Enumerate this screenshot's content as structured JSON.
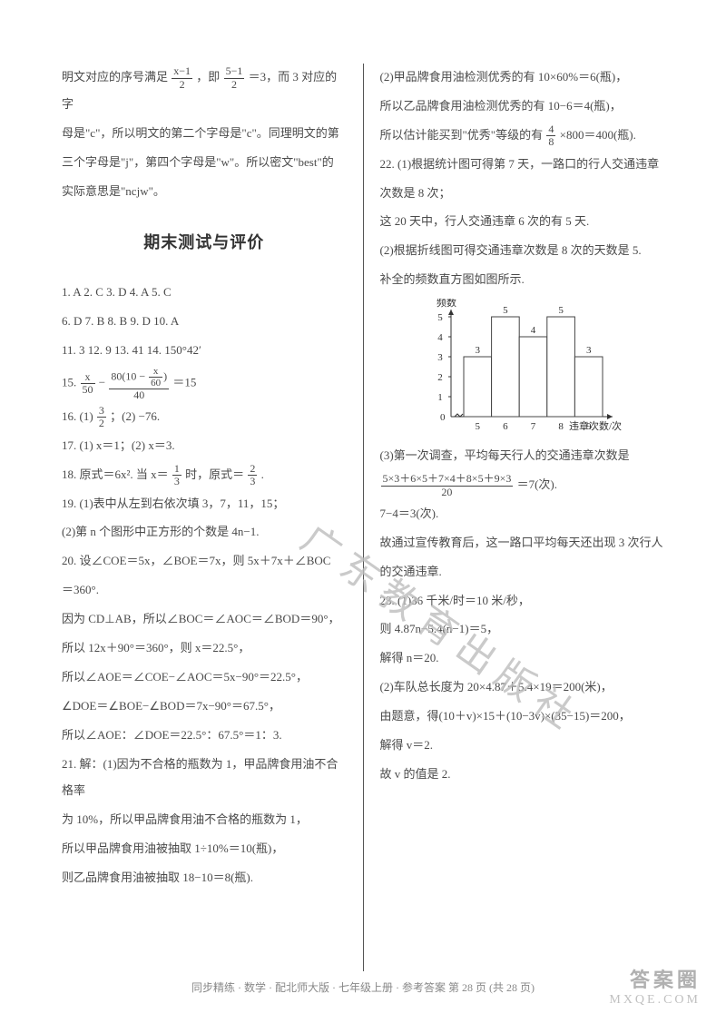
{
  "left": {
    "p1": "明文对应的序号满足",
    "p1b": "，即",
    "p1c": "＝3，而 3 对应的字",
    "f1": {
      "num": "x−1",
      "den": "2"
    },
    "f1b": {
      "num": "5−1",
      "den": "2"
    },
    "p2": "母是\"c\"，所以明文的第二个字母是\"c\"。同理明文的第",
    "p3": "三个字母是\"j\"，第四个字母是\"w\"。所以密文\"best\"的",
    "p4": "实际意思是\"ncjw\"。",
    "heading": "期末测试与评价",
    "q1_5": "1. A   2. C   3. D   4. A   5. C",
    "q6_10": "6. D   7. B   8. B   9. D   10. A",
    "q11_14": "11. 3   12. 9   13. 41   14. 150°42′",
    "q15a": "15. ",
    "q15_f1": {
      "num": "x",
      "den": "50"
    },
    "q15_dash": " − ",
    "q15_f2num_a": "80(10 − ",
    "q15_f2num_f": {
      "num": "x",
      "den": "60"
    },
    "q15_f2num_b": ")",
    "q15_f2den": "40",
    "q15_eq": " ＝15",
    "q16": "16. (1) ",
    "q16f": {
      "num": "3",
      "den": "2"
    },
    "q16b": "；(2) −76.",
    "q17": "17. (1) x＝1；(2) x＝3.",
    "q18a": "18. 原式＝6x². 当 x＝",
    "q18f1": {
      "num": "1",
      "den": "3"
    },
    "q18b": " 时，原式＝",
    "q18f2": {
      "num": "2",
      "den": "3"
    },
    "q18c": ".",
    "q19_1": "19. (1)表中从左到右依次填 3，7，11，15；",
    "q19_2": "(2)第 n 个图形中正方形的个数是 4n−1.",
    "q20_1": "20. 设∠COE＝5x，∠BOE＝7x，则 5x＋7x＋∠BOC",
    "q20_2": "＝360°.",
    "q20_3": "因为 CD⊥AB，所以∠BOC＝∠AOC＝∠BOD＝90°，",
    "q20_4": "所以 12x＋90°＝360°，则 x＝22.5°，",
    "q20_5": "所以∠AOE＝∠COE−∠AOC＝5x−90°＝22.5°，",
    "q20_6": "∠DOE＝∠BOE−∠BOD＝7x−90°＝67.5°，",
    "q20_7": "所以∠AOE：∠DOE＝22.5°：67.5°＝1：3.",
    "q21_1": "21. 解：(1)因为不合格的瓶数为 1，甲品牌食用油不合格率",
    "q21_2": "为 10%，所以甲品牌食用油不合格的瓶数为 1，",
    "q21_3": "所以甲品牌食用油被抽取 1÷10%＝10(瓶)，",
    "q21_4": "则乙品牌食用油被抽取 18−10＝8(瓶)."
  },
  "right": {
    "r1": "(2)甲品牌食用油检测优秀的有 10×60%＝6(瓶)，",
    "r2": "所以乙品牌食用油检测优秀的有 10−6＝4(瓶)，",
    "r3a": "所以估计能买到\"优秀\"等级的有",
    "r3f": {
      "num": "4",
      "den": "8"
    },
    "r3b": "×800＝400(瓶).",
    "r22_1": "22. (1)根据统计图可得第 7 天，一路口的行人交通违章",
    "r22_2": "次数是 8 次；",
    "r22_3": "这 20 天中，行人交通违章 6 次的有 5 天.",
    "r22_4": "(2)根据折线图可得交通违章次数是 8 次的天数是 5.",
    "r22_5": "补全的频数直方图如图所示.",
    "chart": {
      "ylabel": "频数",
      "xlabel": "违章次数/次",
      "xticks": [
        "5",
        "6",
        "7",
        "8",
        "9"
      ],
      "yticks": [
        "1",
        "2",
        "3",
        "4",
        "5"
      ],
      "bars": [
        {
          "x": 5,
          "v": 3,
          "label": "3"
        },
        {
          "x": 6,
          "v": 5,
          "label": "5"
        },
        {
          "x": 7,
          "v": 4,
          "label": "4"
        },
        {
          "x": 8,
          "v": 5,
          "label": "5"
        },
        {
          "x": 9,
          "v": 3,
          "label": "3"
        }
      ],
      "axis_color": "#333333",
      "bar_stroke": "#444444",
      "bar_fill": "#ffffff",
      "font_size": 11
    },
    "r22_6": "(3)第一次调查，平均每天行人的交通违章次数是",
    "r22_7f": {
      "num": "5×3＋6×5＋7×4＋8×5＋9×3",
      "den": "20"
    },
    "r22_7b": "＝7(次).",
    "r22_8": "7−4＝3(次).",
    "r22_9": "故通过宣传教育后，这一路口平均每天还出现 3 次行人",
    "r22_10": "的交通违章.",
    "r23_1": "23. (1)36 千米/时＝10 米/秒，",
    "r23_2": "则 4.87n−5.4(n−1)＝5，",
    "r23_3": "解得 n＝20.",
    "r23_4": "(2)车队总长度为 20×4.87＋5.4×19＝200(米)，",
    "r23_5": "由题意，得(10＋v)×15＋(10−3v)×(35−15)＝200，",
    "r23_6": "解得 v＝2.",
    "r23_7": "故 v 的值是 2."
  },
  "watermark": "广东教育出版社",
  "footer": "同步精练 · 数学 · 配北师大版 · 七年级上册 · 参考答案   第 28 页 (共 28 页)",
  "logo": {
    "l1": "答案圈",
    "l2": "MXQE.COM"
  }
}
